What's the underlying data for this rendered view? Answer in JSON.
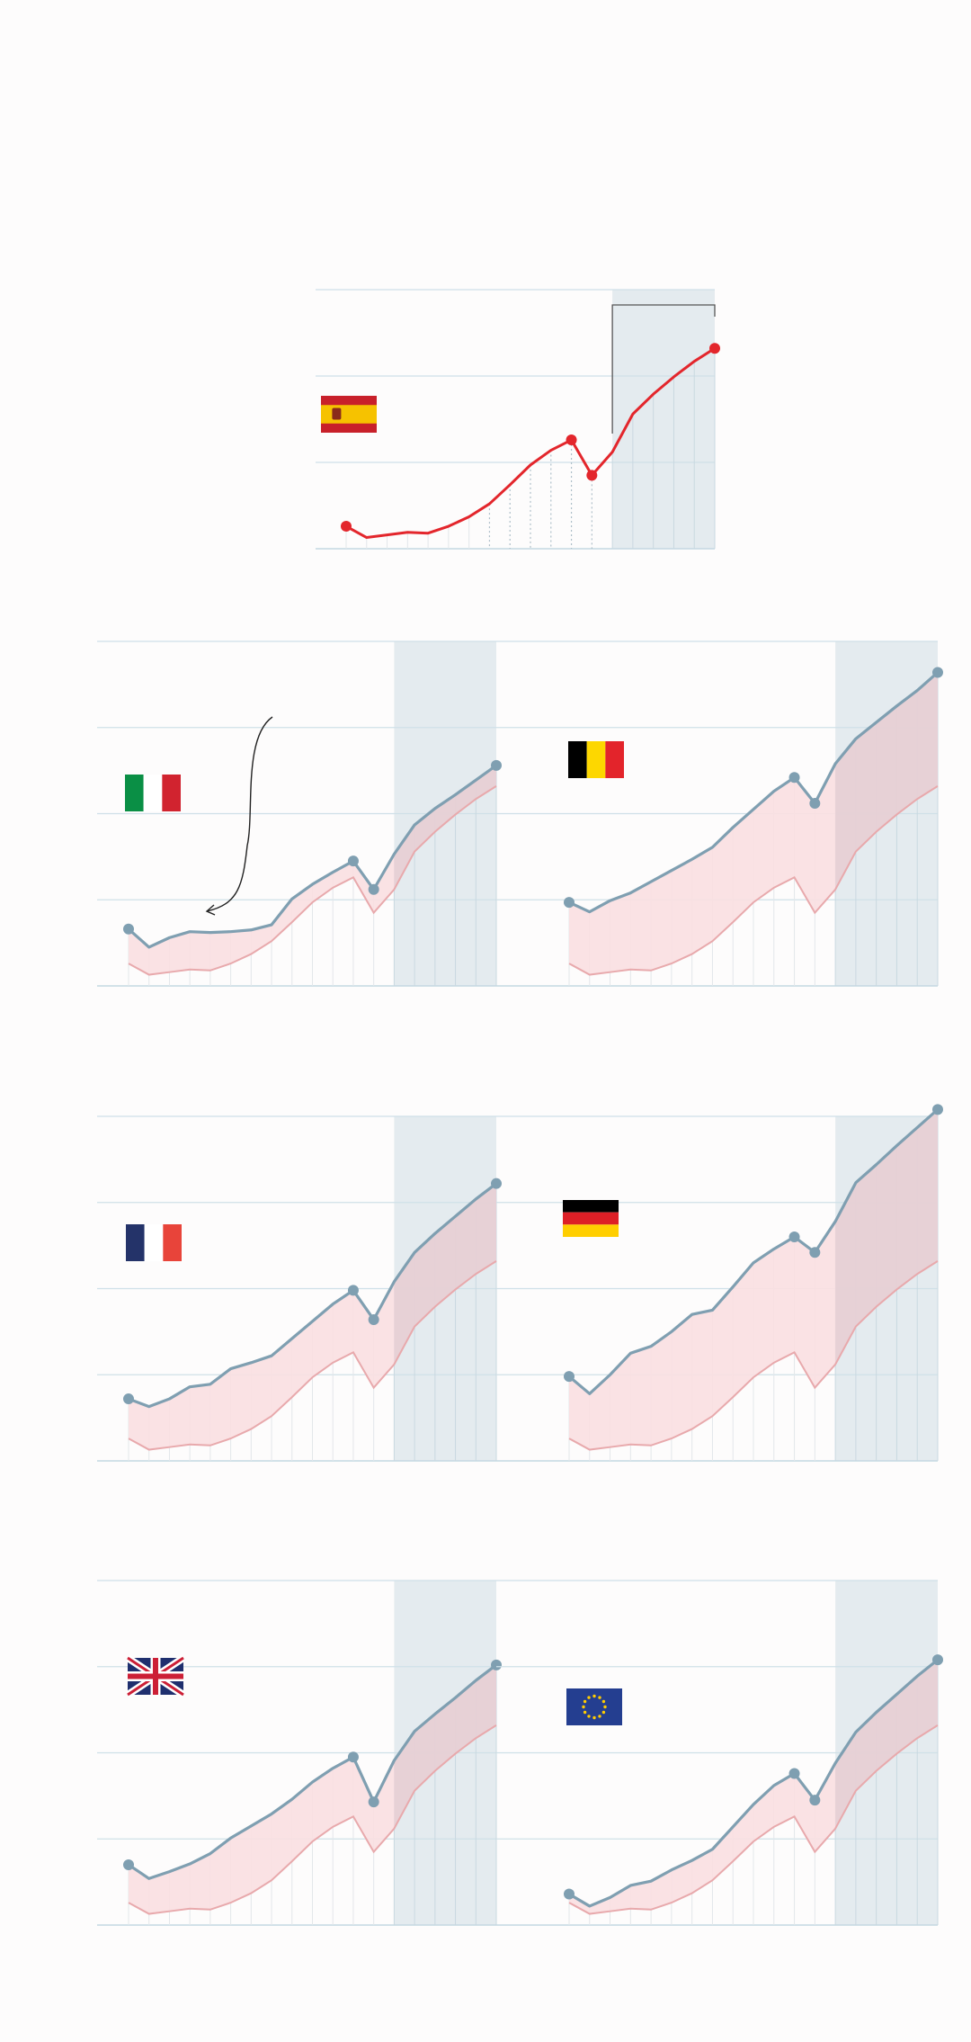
{
  "colors": {
    "spain": "#e3262c",
    "country": "#7f9fb1",
    "spain_reference_band": "#f9dfe1",
    "forecast_shade": "#e4ebef",
    "grid": "#cfe0e8"
  },
  "icons": [
    "flag-spain-icon",
    "flag-italy-icon",
    "flag-belgium-icon",
    "flag-france-icon",
    "flag-germany-icon",
    "flag-uk-icon",
    "flag-eu-icon",
    "curved-arrow-icon"
  ],
  "chart_data": [
    {
      "type": "line",
      "panel": "spain",
      "flag": "flag-spain-icon",
      "x": [
        0,
        1,
        2,
        3,
        4,
        5,
        6,
        7,
        8,
        9,
        10,
        11,
        12,
        13,
        14,
        15,
        16,
        17,
        18
      ],
      "forecast_from_index": 13,
      "highlighted_points": [
        0,
        11,
        12,
        18
      ],
      "ylim": [
        0,
        3
      ],
      "gridlines": [
        0,
        1,
        2,
        3
      ],
      "series": [
        {
          "values": [
            0.26,
            0.13,
            0.16,
            0.19,
            0.18,
            0.26,
            0.37,
            0.52,
            0.74,
            0.97,
            1.14,
            1.26,
            0.85,
            1.12,
            1.56,
            1.79,
            1.99,
            2.17,
            2.32
          ]
        }
      ]
    },
    {
      "type": "area",
      "panel": "italy",
      "flag": "flag-italy-icon",
      "x": [
        0,
        1,
        2,
        3,
        4,
        5,
        6,
        7,
        8,
        9,
        10,
        11,
        12,
        13,
        14,
        15,
        16,
        17,
        18
      ],
      "forecast_from_index": 13,
      "highlighted_points": [
        0,
        11,
        12,
        18
      ],
      "ylim": [
        0,
        4
      ],
      "gridlines": [
        0,
        1,
        2,
        3,
        4
      ],
      "series": [
        {
          "values": [
            0.66,
            0.45,
            0.56,
            0.63,
            0.62,
            0.63,
            0.65,
            0.71,
            1.01,
            1.18,
            1.32,
            1.45,
            1.12,
            1.53,
            1.87,
            2.06,
            2.22,
            2.39,
            2.56
          ]
        },
        {
          "values": [
            0.26,
            0.13,
            0.16,
            0.19,
            0.18,
            0.26,
            0.37,
            0.52,
            0.74,
            0.97,
            1.14,
            1.26,
            0.85,
            1.12,
            1.56,
            1.79,
            1.99,
            2.17,
            2.32
          ]
        }
      ]
    },
    {
      "type": "area",
      "panel": "belgium",
      "flag": "flag-belgium-icon",
      "x": [
        0,
        1,
        2,
        3,
        4,
        5,
        6,
        7,
        8,
        9,
        10,
        11,
        12,
        13,
        14,
        15,
        16,
        17,
        18
      ],
      "forecast_from_index": 13,
      "highlighted_points": [
        0,
        11,
        12,
        18
      ],
      "ylim": [
        0,
        4
      ],
      "gridlines": [
        0,
        1,
        2,
        3,
        4
      ],
      "series": [
        {
          "values": [
            0.97,
            0.86,
            0.99,
            1.08,
            1.21,
            1.34,
            1.47,
            1.61,
            1.84,
            2.05,
            2.26,
            2.42,
            2.12,
            2.58,
            2.87,
            3.06,
            3.25,
            3.43,
            3.64
          ]
        },
        {
          "values": [
            0.26,
            0.13,
            0.16,
            0.19,
            0.18,
            0.26,
            0.37,
            0.52,
            0.74,
            0.97,
            1.14,
            1.26,
            0.85,
            1.12,
            1.56,
            1.79,
            1.99,
            2.17,
            2.32
          ]
        }
      ]
    },
    {
      "type": "area",
      "panel": "france",
      "flag": "flag-france-icon",
      "x": [
        0,
        1,
        2,
        3,
        4,
        5,
        6,
        7,
        8,
        9,
        10,
        11,
        12,
        13,
        14,
        15,
        16,
        17,
        18
      ],
      "forecast_from_index": 13,
      "highlighted_points": [
        0,
        11,
        12,
        18
      ],
      "ylim": [
        0,
        4
      ],
      "gridlines": [
        0,
        1,
        2,
        3,
        4
      ],
      "series": [
        {
          "values": [
            0.72,
            0.63,
            0.72,
            0.86,
            0.89,
            1.07,
            1.14,
            1.22,
            1.42,
            1.62,
            1.82,
            1.98,
            1.64,
            2.08,
            2.42,
            2.64,
            2.84,
            3.04,
            3.22
          ]
        },
        {
          "values": [
            0.26,
            0.13,
            0.16,
            0.19,
            0.18,
            0.26,
            0.37,
            0.52,
            0.74,
            0.97,
            1.14,
            1.26,
            0.85,
            1.12,
            1.56,
            1.79,
            1.99,
            2.17,
            2.32
          ]
        }
      ]
    },
    {
      "type": "area",
      "panel": "germany",
      "flag": "flag-germany-icon",
      "x": [
        0,
        1,
        2,
        3,
        4,
        5,
        6,
        7,
        8,
        9,
        10,
        11,
        12,
        13,
        14,
        15,
        16,
        17,
        18
      ],
      "forecast_from_index": 13,
      "highlighted_points": [
        0,
        11,
        12,
        18
      ],
      "ylim": [
        0,
        4
      ],
      "gridlines": [
        0,
        1,
        2,
        3,
        4
      ],
      "series": [
        {
          "values": [
            0.98,
            0.78,
            1.0,
            1.25,
            1.33,
            1.5,
            1.7,
            1.75,
            2.02,
            2.3,
            2.46,
            2.6,
            2.42,
            2.78,
            3.23,
            3.44,
            3.66,
            3.87,
            4.08
          ]
        },
        {
          "values": [
            0.26,
            0.13,
            0.16,
            0.19,
            0.18,
            0.26,
            0.37,
            0.52,
            0.74,
            0.97,
            1.14,
            1.26,
            0.85,
            1.12,
            1.56,
            1.79,
            1.99,
            2.17,
            2.32
          ]
        }
      ]
    },
    {
      "type": "area",
      "panel": "uk",
      "flag": "flag-uk-icon",
      "x": [
        0,
        1,
        2,
        3,
        4,
        5,
        6,
        7,
        8,
        9,
        10,
        11,
        12,
        13,
        14,
        15,
        16,
        17,
        18
      ],
      "forecast_from_index": 13,
      "highlighted_points": [
        0,
        11,
        12,
        18
      ],
      "ylim": [
        0,
        4
      ],
      "gridlines": [
        0,
        1,
        2,
        3,
        4
      ],
      "series": [
        {
          "values": [
            0.7,
            0.54,
            0.62,
            0.71,
            0.83,
            1.01,
            1.15,
            1.29,
            1.46,
            1.66,
            1.82,
            1.95,
            1.43,
            1.91,
            2.25,
            2.45,
            2.64,
            2.84,
            3.02
          ]
        },
        {
          "values": [
            0.26,
            0.13,
            0.16,
            0.19,
            0.18,
            0.26,
            0.37,
            0.52,
            0.74,
            0.97,
            1.14,
            1.26,
            0.85,
            1.12,
            1.56,
            1.79,
            1.99,
            2.17,
            2.32
          ]
        }
      ]
    },
    {
      "type": "area",
      "panel": "eu",
      "flag": "flag-eu-icon",
      "x": [
        0,
        1,
        2,
        3,
        4,
        5,
        6,
        7,
        8,
        9,
        10,
        11,
        12,
        13,
        14,
        15,
        16,
        17,
        18
      ],
      "forecast_from_index": 13,
      "highlighted_points": [
        0,
        11,
        12,
        18
      ],
      "ylim": [
        0,
        4
      ],
      "gridlines": [
        0,
        1,
        2,
        3,
        4
      ],
      "series": [
        {
          "values": [
            0.36,
            0.22,
            0.32,
            0.46,
            0.51,
            0.64,
            0.75,
            0.88,
            1.14,
            1.4,
            1.62,
            1.76,
            1.45,
            1.88,
            2.24,
            2.47,
            2.68,
            2.89,
            3.08
          ]
        },
        {
          "values": [
            0.26,
            0.13,
            0.16,
            0.19,
            0.18,
            0.26,
            0.37,
            0.52,
            0.74,
            0.97,
            1.14,
            1.26,
            0.85,
            1.12,
            1.56,
            1.79,
            1.99,
            2.17,
            2.32
          ]
        }
      ]
    }
  ]
}
